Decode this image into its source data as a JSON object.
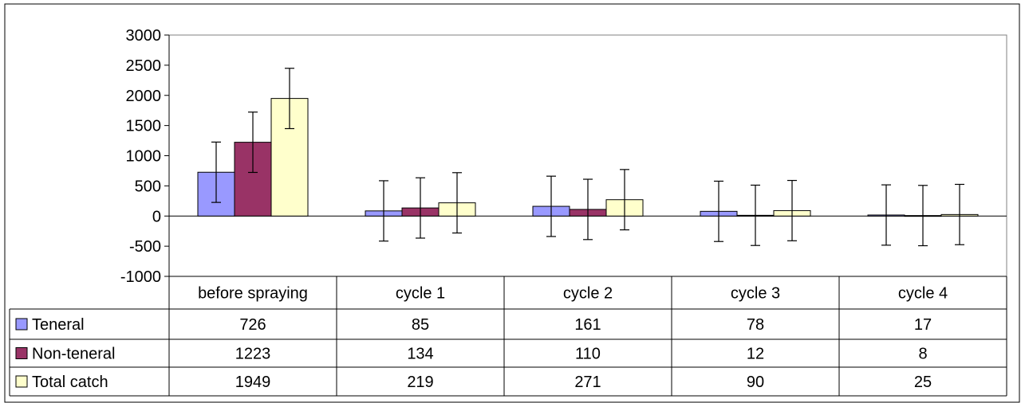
{
  "chart_data": {
    "type": "bar",
    "categories": [
      "before spraying",
      "cycle 1",
      "cycle 2",
      "cycle 3",
      "cycle 4"
    ],
    "series": [
      {
        "name": "Teneral",
        "values": [
          726,
          85,
          161,
          78,
          17
        ],
        "color": "#9999ff"
      },
      {
        "name": "Non-teneral",
        "values": [
          1223,
          134,
          110,
          12,
          8
        ],
        "color": "#993366"
      },
      {
        "name": "Total catch",
        "values": [
          1949,
          219,
          271,
          90,
          25
        ],
        "color": "#ffffcc"
      }
    ],
    "error_bar": 500,
    "ylim": [
      -1000,
      3000
    ],
    "yticks": [
      -1000,
      -500,
      0,
      500,
      1000,
      1500,
      2000,
      2500,
      3000
    ],
    "grid": false,
    "legend": "data-table",
    "data_table": true,
    "title": "",
    "xlabel": "",
    "ylabel": ""
  }
}
